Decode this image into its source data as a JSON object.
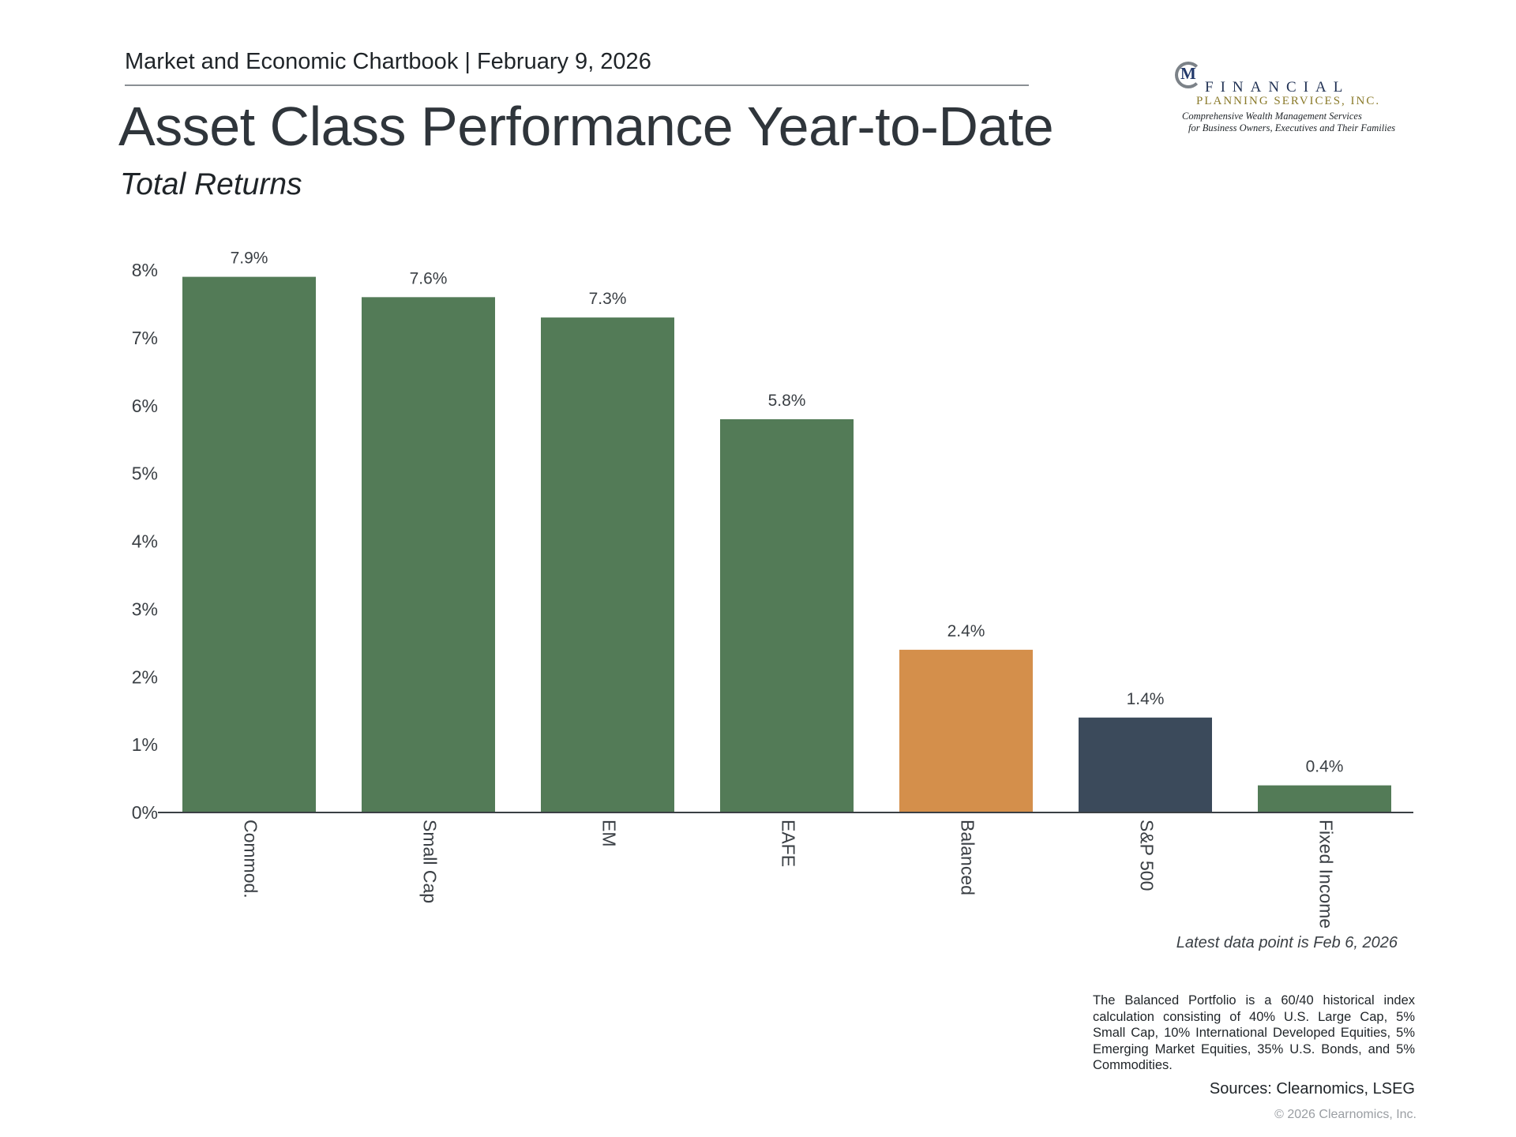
{
  "header": {
    "chartbook": "Market and Economic Chartbook | February 9, 2026",
    "title": "Asset Class Performance Year-to-Date",
    "subtitle": "Total Returns"
  },
  "logo": {
    "name": "FINANCIAL",
    "subname": "PLANNING SERVICES, INC.",
    "tagline1": "Comprehensive Wealth Management Services",
    "tagline2": "for Business Owners, Executives and Their Families"
  },
  "chart_data": {
    "type": "bar",
    "categories": [
      "Commod.",
      "Small Cap",
      "EM",
      "EAFE",
      "Balanced",
      "S&P 500",
      "Fixed Income"
    ],
    "values": [
      7.9,
      7.6,
      7.3,
      5.8,
      2.4,
      1.4,
      0.4
    ],
    "value_labels": [
      "7.9%",
      "7.6%",
      "7.3%",
      "5.8%",
      "2.4%",
      "1.4%",
      "0.4%"
    ],
    "bar_colors": [
      "#537b57",
      "#537b57",
      "#537b57",
      "#537b57",
      "#d48f4b",
      "#3b4a5b",
      "#537b57"
    ],
    "yticks": [
      0,
      1,
      2,
      3,
      4,
      5,
      6,
      7,
      8
    ],
    "ytick_labels": [
      "0%",
      "1%",
      "2%",
      "3%",
      "4%",
      "5%",
      "6%",
      "7%",
      "8%"
    ],
    "ylim": [
      0,
      8
    ],
    "grid": false,
    "xlabel": "",
    "ylabel": ""
  },
  "notes": {
    "latest": "Latest data point is Feb 6, 2026",
    "balanced": "The Balanced Portfolio is a 60/40 historical index calculation consisting of 40% U.S. Large Cap, 5% Small Cap, 10% International Developed Equities, 5% Emerging Market Equities, 35% U.S. Bonds, and 5% Commodities.",
    "sources": "Sources: Clearnomics, LSEG",
    "copyright": "© 2026 Clearnomics, Inc."
  }
}
